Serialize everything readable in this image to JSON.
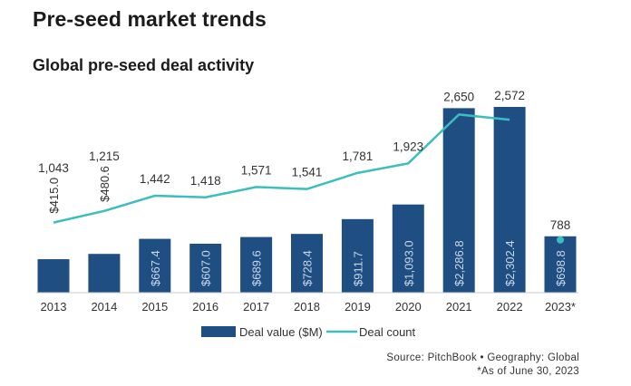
{
  "header": {
    "title": "Pre-seed market trends",
    "subtitle": "Global pre-seed deal activity"
  },
  "chart_data": {
    "type": "bar+line",
    "categories": [
      "2013",
      "2014",
      "2015",
      "2016",
      "2017",
      "2018",
      "2019",
      "2020",
      "2021",
      "2022",
      "2023*"
    ],
    "series": [
      {
        "name": "Deal value ($M)",
        "type": "bar",
        "color": "#1f4e83",
        "values": [
          415.0,
          480.6,
          667.4,
          607.0,
          689.6,
          728.4,
          911.7,
          1093.0,
          2286.8,
          2302.4,
          698.8
        ],
        "labels": [
          "$415.0",
          "$480.6",
          "$667.4",
          "$607.0",
          "$689.6",
          "$728.4",
          "$911.7",
          "$1,093.0",
          "$2,286.8",
          "$2,302.4",
          "$698.8"
        ]
      },
      {
        "name": "Deal count",
        "type": "line",
        "color": "#3dbdbf",
        "values": [
          1043,
          1215,
          1442,
          1418,
          1571,
          1541,
          1781,
          1923,
          2650,
          2572,
          788
        ],
        "labels": [
          "1,043",
          "1,215",
          "1,442",
          "1,418",
          "1,571",
          "1,541",
          "1,781",
          "1,923",
          "2,650",
          "2,572",
          "788"
        ]
      }
    ],
    "legend": "bottom-center",
    "grid": false
  },
  "footer": {
    "source": "Source: PitchBook  •  Geography: Global",
    "note": "*As of June 30, 2023"
  }
}
